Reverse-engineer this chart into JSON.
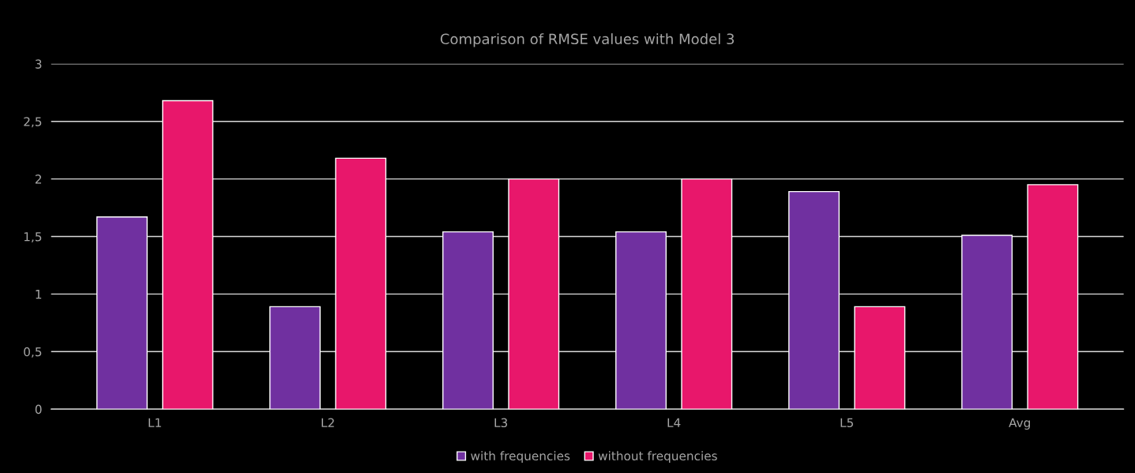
{
  "chart_data": {
    "type": "bar",
    "title": "Comparison of RMSE values with Model 3",
    "categories": [
      "L1",
      "L2",
      "L3",
      "L4",
      "L5",
      "Avg"
    ],
    "series": [
      {
        "name": "with frequencies",
        "color": "#7030a0",
        "values": [
          1.67,
          0.89,
          1.54,
          1.54,
          1.89,
          1.51
        ]
      },
      {
        "name": "without frequencies",
        "color": "#e8176b",
        "values": [
          2.68,
          2.18,
          2.0,
          2.0,
          0.89,
          1.95
        ]
      }
    ],
    "ylim": [
      0,
      3
    ],
    "yticks": [
      0,
      {
        "value": 0.5,
        "label": "0,5"
      },
      1,
      {
        "value": 1.5,
        "label": "1,5"
      },
      2,
      {
        "value": 2.5,
        "label": "2,5"
      },
      3
    ],
    "grid": "y",
    "legend": "bottom"
  }
}
